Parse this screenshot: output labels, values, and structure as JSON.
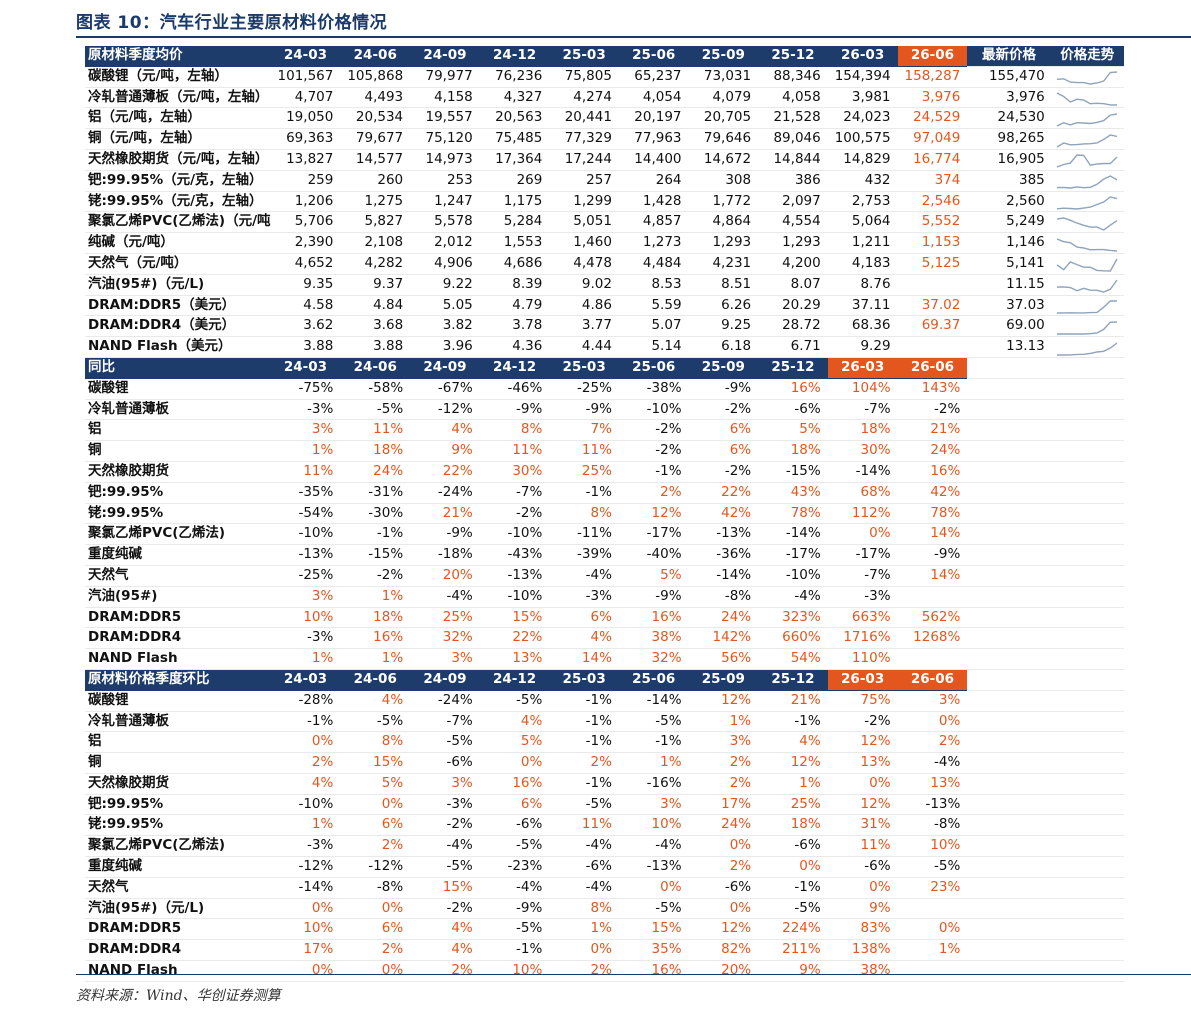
{
  "title": "图表 10：汽车行业主要原材料价格情况",
  "source": "资料来源：Wind、华创证券测算",
  "periods": [
    "24-03",
    "24-06",
    "24-09",
    "24-12",
    "25-03",
    "25-06",
    "25-09",
    "25-12",
    "26-03",
    "26-06"
  ],
  "colors": {
    "header_bg": "#1d3b6b",
    "highlight": "#e3571f",
    "sparkline": "#8ea3bd"
  },
  "section_price": {
    "label": "原材料季度均价",
    "latest_label": "最新价格",
    "trend_label": "价格走势",
    "rows": [
      {
        "name": "碳酸锂（元/吨，左轴）",
        "vals": [
          "101,567",
          "105,868",
          "79,977",
          "76,236",
          "75,805",
          "65,237",
          "73,031",
          "88,346",
          "154,394",
          "158,287"
        ],
        "latest": "155,470",
        "trend": [
          101567,
          105868,
          79977,
          76236,
          75805,
          65237,
          73031,
          88346,
          154394,
          158287
        ]
      },
      {
        "name": "冷轧普通薄板（元/吨，左轴）",
        "vals": [
          "4,707",
          "4,493",
          "4,158",
          "4,327",
          "4,274",
          "4,054",
          "4,079",
          "4,058",
          "3,981",
          "3,976"
        ],
        "latest": "3,976",
        "trend": [
          4707,
          4493,
          4158,
          4327,
          4274,
          4054,
          4079,
          4058,
          3981,
          3976
        ]
      },
      {
        "name": "铝（元/吨，左轴）",
        "vals": [
          "19,050",
          "20,534",
          "19,557",
          "20,563",
          "20,441",
          "20,197",
          "20,705",
          "21,528",
          "24,023",
          "24,529"
        ],
        "latest": "24,530",
        "trend": [
          19050,
          20534,
          19557,
          20563,
          20441,
          20197,
          20705,
          21528,
          24023,
          24529
        ]
      },
      {
        "name": "铜（元/吨，左轴）",
        "vals": [
          "69,363",
          "79,677",
          "75,120",
          "75,485",
          "77,329",
          "77,963",
          "79,646",
          "89,046",
          "100,575",
          "97,049"
        ],
        "latest": "98,265",
        "trend": [
          69363,
          79677,
          75120,
          75485,
          77329,
          77963,
          79646,
          89046,
          100575,
          97049
        ]
      },
      {
        "name": "天然橡胶期货（元/吨，左轴）",
        "vals": [
          "13,827",
          "14,577",
          "14,973",
          "17,364",
          "17,244",
          "14,400",
          "14,672",
          "14,844",
          "14,829",
          "16,774"
        ],
        "latest": "16,905",
        "trend": [
          13827,
          14577,
          14973,
          17364,
          17244,
          14400,
          14672,
          14844,
          14829,
          16774
        ]
      },
      {
        "name": "钯:99.95%（元/克，左轴）",
        "vals": [
          "259",
          "260",
          "253",
          "269",
          "257",
          "264",
          "308",
          "386",
          "432",
          "374"
        ],
        "latest": "385",
        "trend": [
          259,
          260,
          253,
          269,
          257,
          264,
          308,
          386,
          432,
          374
        ]
      },
      {
        "name": "铑:99.95%（元/克，左轴）",
        "vals": [
          "1,206",
          "1,275",
          "1,247",
          "1,175",
          "1,299",
          "1,428",
          "1,772",
          "2,097",
          "2,753",
          "2,546"
        ],
        "latest": "2,560",
        "trend": [
          1206,
          1275,
          1247,
          1175,
          1299,
          1428,
          1772,
          2097,
          2753,
          2546
        ]
      },
      {
        "name": "聚氯乙烯PVC(乙烯法)（元/吨",
        "vals": [
          "5,706",
          "5,827",
          "5,578",
          "5,284",
          "5,051",
          "4,857",
          "4,864",
          "4,554",
          "5,064",
          "5,552"
        ],
        "latest": "5,249",
        "trend": [
          5706,
          5827,
          5578,
          5284,
          5051,
          4857,
          4864,
          4554,
          5064,
          5552
        ]
      },
      {
        "name": "纯碱（元/吨）",
        "vals": [
          "2,390",
          "2,108",
          "2,012",
          "1,553",
          "1,460",
          "1,273",
          "1,293",
          "1,293",
          "1,211",
          "1,153"
        ],
        "latest": "1,146",
        "trend": [
          2390,
          2108,
          2012,
          1553,
          1460,
          1273,
          1293,
          1293,
          1211,
          1153
        ]
      },
      {
        "name": "天然气（元/吨）",
        "vals": [
          "4,652",
          "4,282",
          "4,906",
          "4,686",
          "4,478",
          "4,484",
          "4,231",
          "4,200",
          "4,183",
          "5,125"
        ],
        "latest": "5,141",
        "trend": [
          4652,
          4282,
          4906,
          4686,
          4478,
          4484,
          4231,
          4200,
          4183,
          5125
        ]
      },
      {
        "name": "汽油(95#)（元/L)",
        "vals": [
          "9.35",
          "9.37",
          "9.22",
          "8.39",
          "9.02",
          "8.53",
          "8.51",
          "8.07",
          "8.76",
          ""
        ],
        "latest": "11.15",
        "trend": [
          9.35,
          9.37,
          9.22,
          8.39,
          9.02,
          8.53,
          8.51,
          8.07,
          8.76,
          11.15
        ]
      },
      {
        "name": "DRAM:DDR5（美元）",
        "vals": [
          "4.58",
          "4.84",
          "5.05",
          "4.79",
          "4.86",
          "5.59",
          "6.26",
          "20.29",
          "37.11",
          "37.02"
        ],
        "latest": "37.03",
        "trend": [
          4.58,
          4.84,
          5.05,
          4.79,
          4.86,
          5.59,
          6.26,
          20.29,
          37.11,
          37.02
        ]
      },
      {
        "name": "DRAM:DDR4（美元）",
        "vals": [
          "3.62",
          "3.68",
          "3.82",
          "3.78",
          "3.77",
          "5.07",
          "9.25",
          "28.72",
          "68.36",
          "69.37"
        ],
        "latest": "69.00",
        "trend": [
          3.62,
          3.68,
          3.82,
          3.78,
          3.77,
          5.07,
          9.25,
          28.72,
          68.36,
          69.37
        ]
      },
      {
        "name": "NAND Flash（美元）",
        "vals": [
          "3.88",
          "3.88",
          "3.96",
          "4.36",
          "4.44",
          "5.14",
          "6.18",
          "6.71",
          "9.29",
          ""
        ],
        "latest": "13.13",
        "trend": [
          3.88,
          3.88,
          3.96,
          4.36,
          4.44,
          5.14,
          6.18,
          6.71,
          9.29,
          13.13
        ]
      }
    ]
  },
  "section_yoy": {
    "label": "同比",
    "rows": [
      {
        "name": "碳酸锂",
        "vals": [
          "-75%",
          "-58%",
          "-67%",
          "-46%",
          "-25%",
          "-38%",
          "-9%",
          "16%",
          "104%",
          "143%"
        ]
      },
      {
        "name": "冷轧普通薄板",
        "vals": [
          "-3%",
          "-5%",
          "-12%",
          "-9%",
          "-9%",
          "-10%",
          "-2%",
          "-6%",
          "-7%",
          "-2%"
        ]
      },
      {
        "name": "铝",
        "vals": [
          "3%",
          "11%",
          "4%",
          "8%",
          "7%",
          "-2%",
          "6%",
          "5%",
          "18%",
          "21%"
        ]
      },
      {
        "name": "铜",
        "vals": [
          "1%",
          "18%",
          "9%",
          "11%",
          "11%",
          "-2%",
          "6%",
          "18%",
          "30%",
          "24%"
        ]
      },
      {
        "name": "天然橡胶期货",
        "vals": [
          "11%",
          "24%",
          "22%",
          "30%",
          "25%",
          "-1%",
          "-2%",
          "-15%",
          "-14%",
          "16%"
        ]
      },
      {
        "name": "钯:99.95%",
        "vals": [
          "-35%",
          "-31%",
          "-24%",
          "-7%",
          "-1%",
          "2%",
          "22%",
          "43%",
          "68%",
          "42%"
        ]
      },
      {
        "name": "铑:99.95%",
        "vals": [
          "-54%",
          "-30%",
          "21%",
          "-2%",
          "8%",
          "12%",
          "42%",
          "78%",
          "112%",
          "78%"
        ]
      },
      {
        "name": "聚氯乙烯PVC(乙烯法)",
        "vals": [
          "-10%",
          "-1%",
          "-9%",
          "-10%",
          "-11%",
          "-17%",
          "-13%",
          "-14%",
          "0%",
          "14%"
        ]
      },
      {
        "name": "重度纯碱",
        "vals": [
          "-13%",
          "-15%",
          "-18%",
          "-43%",
          "-39%",
          "-40%",
          "-36%",
          "-17%",
          "-17%",
          "-9%"
        ]
      },
      {
        "name": "天然气",
        "vals": [
          "-25%",
          "-2%",
          "20%",
          "-13%",
          "-4%",
          "5%",
          "-14%",
          "-10%",
          "-7%",
          "14%"
        ]
      },
      {
        "name": "汽油(95#)",
        "vals": [
          "3%",
          "1%",
          "-4%",
          "-10%",
          "-3%",
          "-9%",
          "-8%",
          "-4%",
          "-3%",
          ""
        ]
      },
      {
        "name": "DRAM:DDR5",
        "vals": [
          "10%",
          "18%",
          "25%",
          "15%",
          "6%",
          "16%",
          "24%",
          "323%",
          "663%",
          "562%"
        ]
      },
      {
        "name": "DRAM:DDR4",
        "vals": [
          "-3%",
          "16%",
          "32%",
          "22%",
          "4%",
          "38%",
          "142%",
          "660%",
          "1716%",
          "1268%"
        ]
      },
      {
        "name": "NAND Flash",
        "vals": [
          "1%",
          "1%",
          "3%",
          "13%",
          "14%",
          "32%",
          "56%",
          "54%",
          "110%",
          ""
        ]
      }
    ]
  },
  "section_qoq": {
    "label": "原材料价格季度环比",
    "rows": [
      {
        "name": "碳酸锂",
        "vals": [
          "-28%",
          "4%",
          "-24%",
          "-5%",
          "-1%",
          "-14%",
          "12%",
          "21%",
          "75%",
          "3%"
        ]
      },
      {
        "name": "冷轧普通薄板",
        "vals": [
          "-1%",
          "-5%",
          "-7%",
          "4%",
          "-1%",
          "-5%",
          "1%",
          "-1%",
          "-2%",
          "0%"
        ]
      },
      {
        "name": "铝",
        "vals": [
          "0%",
          "8%",
          "-5%",
          "5%",
          "-1%",
          "-1%",
          "3%",
          "4%",
          "12%",
          "2%"
        ]
      },
      {
        "name": "铜",
        "vals": [
          "2%",
          "15%",
          "-6%",
          "0%",
          "2%",
          "1%",
          "2%",
          "12%",
          "13%",
          "-4%"
        ]
      },
      {
        "name": "天然橡胶期货",
        "vals": [
          "4%",
          "5%",
          "3%",
          "16%",
          "-1%",
          "-16%",
          "2%",
          "1%",
          "0%",
          "13%"
        ]
      },
      {
        "name": "钯:99.95%",
        "vals": [
          "-10%",
          "0%",
          "-3%",
          "6%",
          "-5%",
          "3%",
          "17%",
          "25%",
          "12%",
          "-13%"
        ]
      },
      {
        "name": "铑:99.95%",
        "vals": [
          "1%",
          "6%",
          "-2%",
          "-6%",
          "11%",
          "10%",
          "24%",
          "18%",
          "31%",
          "-8%"
        ]
      },
      {
        "name": "聚氯乙烯PVC(乙烯法)",
        "vals": [
          "-3%",
          "2%",
          "-4%",
          "-5%",
          "-4%",
          "-4%",
          "0%",
          "-6%",
          "11%",
          "10%"
        ]
      },
      {
        "name": "重度纯碱",
        "vals": [
          "-12%",
          "-12%",
          "-5%",
          "-23%",
          "-6%",
          "-13%",
          "2%",
          "0%",
          "-6%",
          "-5%"
        ]
      },
      {
        "name": "天然气",
        "vals": [
          "-14%",
          "-8%",
          "15%",
          "-4%",
          "-4%",
          "0%",
          "-6%",
          "-1%",
          "0%",
          "23%"
        ]
      },
      {
        "name": "汽油(95#)（元/L)",
        "vals": [
          "0%",
          "0%",
          "-2%",
          "-9%",
          "8%",
          "-5%",
          "0%",
          "-5%",
          "9%",
          ""
        ]
      },
      {
        "name": "DRAM:DDR5",
        "vals": [
          "10%",
          "6%",
          "4%",
          "-5%",
          "1%",
          "15%",
          "12%",
          "224%",
          "83%",
          "0%"
        ]
      },
      {
        "name": "DRAM:DDR4",
        "vals": [
          "17%",
          "2%",
          "4%",
          "-1%",
          "0%",
          "35%",
          "82%",
          "211%",
          "138%",
          "1%"
        ]
      },
      {
        "name": "NAND Flash",
        "vals": [
          "0%",
          "0%",
          "2%",
          "10%",
          "2%",
          "16%",
          "20%",
          "9%",
          "38%",
          ""
        ]
      }
    ]
  }
}
